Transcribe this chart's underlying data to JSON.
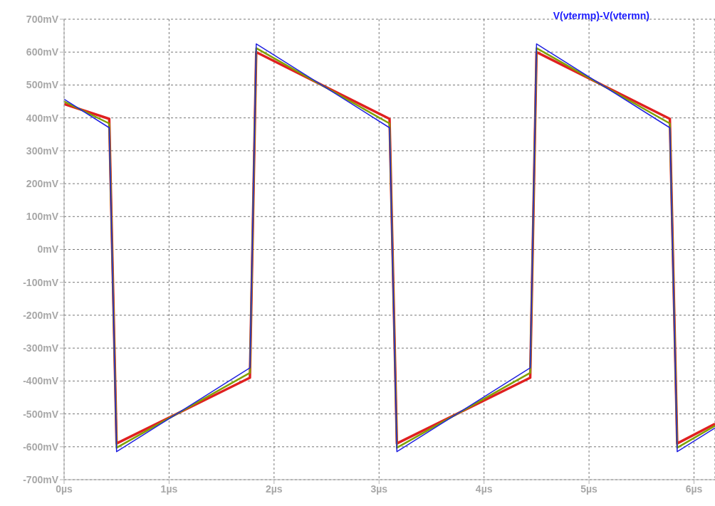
{
  "chart_data": {
    "type": "line",
    "title": "V(vtermp)-V(vtermn)",
    "xlim": [
      0,
      6.2
    ],
    "ylim": [
      -700,
      700
    ],
    "xticks": [
      {
        "value": 0,
        "label": "0µs"
      },
      {
        "value": 1,
        "label": "1µs"
      },
      {
        "value": 2,
        "label": "2µs"
      },
      {
        "value": 3,
        "label": "3µs"
      },
      {
        "value": 4,
        "label": "4µs"
      },
      {
        "value": 5,
        "label": "5µs"
      },
      {
        "value": 6,
        "label": "6µs"
      }
    ],
    "yticks": [
      {
        "value": -700,
        "label": "-700mV"
      },
      {
        "value": -600,
        "label": "-600mV"
      },
      {
        "value": -500,
        "label": "-500mV"
      },
      {
        "value": -400,
        "label": "-400mV"
      },
      {
        "value": -300,
        "label": "-300mV"
      },
      {
        "value": -200,
        "label": "-200mV"
      },
      {
        "value": -100,
        "label": "-100mV"
      },
      {
        "value": 0,
        "label": "0mV"
      },
      {
        "value": 100,
        "label": "100mV"
      },
      {
        "value": 200,
        "label": "200mV"
      },
      {
        "value": 300,
        "label": "300mV"
      },
      {
        "value": 400,
        "label": "400mV"
      },
      {
        "value": 500,
        "label": "500mV"
      },
      {
        "value": 600,
        "label": "600mV"
      },
      {
        "value": 700,
        "label": "700mV"
      }
    ],
    "grid": true,
    "marker": "none",
    "line_style": "solid",
    "series": [
      {
        "color": "#e02020",
        "x": [
          0,
          0.43,
          0.5,
          1.77,
          1.83,
          3.1,
          3.17,
          4.44,
          4.5,
          5.77,
          5.84,
          6.2
        ],
        "values": [
          442,
          397,
          -590,
          -390,
          600,
          397,
          -590,
          -390,
          600,
          397,
          -590,
          -530
        ]
      },
      {
        "color": "#80a000",
        "x": [
          0,
          0.43,
          0.5,
          1.77,
          1.83,
          3.1,
          3.17,
          4.44,
          4.5,
          5.77,
          5.84,
          6.2
        ],
        "values": [
          450,
          383,
          -603,
          -375,
          612,
          383,
          -603,
          -375,
          612,
          383,
          -603,
          -536
        ]
      },
      {
        "color": "#2020e0",
        "x": [
          0,
          0.43,
          0.5,
          1.77,
          1.83,
          3.1,
          3.17,
          4.44,
          4.5,
          5.77,
          5.84,
          6.2
        ],
        "values": [
          457,
          370,
          -615,
          -360,
          625,
          370,
          -615,
          -360,
          625,
          370,
          -615,
          -543
        ]
      }
    ]
  }
}
